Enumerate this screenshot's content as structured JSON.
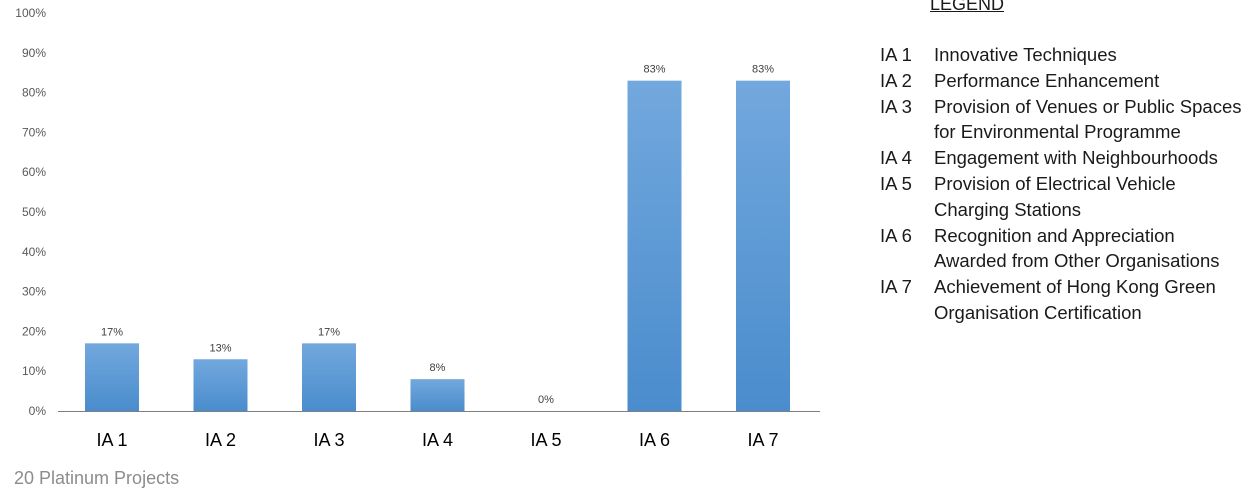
{
  "chart_data": {
    "type": "bar",
    "categories": [
      "IA 1",
      "IA 2",
      "IA 3",
      "IA 4",
      "IA 5",
      "IA 6",
      "IA 7"
    ],
    "values": [
      17,
      13,
      17,
      8,
      0,
      83,
      83
    ],
    "data_labels": [
      "17%",
      "13%",
      "17%",
      "8%",
      "0%",
      "83%",
      "83%"
    ],
    "ylim": [
      0,
      100
    ],
    "yticks": [
      "0%",
      "10%",
      "20%",
      "30%",
      "40%",
      "50%",
      "60%",
      "70%",
      "80%",
      "90%",
      "100%"
    ],
    "grid": false,
    "bar_color_top": "#72a8dd",
    "bar_color_bottom": "#4a8ccd",
    "legend_placement": "right"
  },
  "legend": {
    "title": "LEGEND",
    "items": [
      {
        "code": "IA 1",
        "text": "Innovative Techniques"
      },
      {
        "code": "IA 2",
        "text": "Performance Enhancement"
      },
      {
        "code": "IA 3",
        "text": "Provision of Venues or Public Spaces for Environmental Programme"
      },
      {
        "code": "IA 4",
        "text": "Engagement with Neighbourhoods"
      },
      {
        "code": "IA 5",
        "text": "Provision of Electrical Vehicle Charging Stations"
      },
      {
        "code": "IA 6",
        "text": "Recognition and Appreciation Awarded from Other Organisations"
      },
      {
        "code": "IA 7",
        "text": "Achievement of Hong Kong Green Organisation Certification"
      }
    ]
  },
  "footer": "20 Platinum Projects"
}
